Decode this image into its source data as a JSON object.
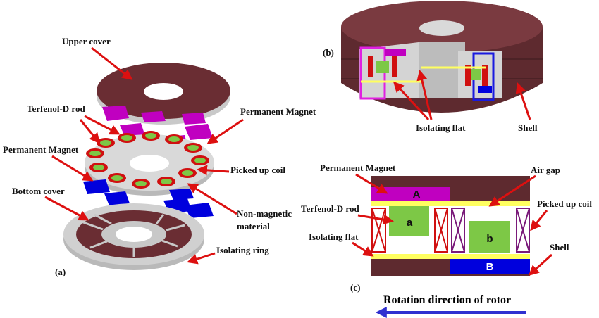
{
  "labels": {
    "upper_cover": "Upper cover",
    "terfenol_a": "Terfenol-D rod",
    "permanent_magnet_a_right": "Permanent Magnet",
    "permanent_magnet_a_left": "Permanent Magnet",
    "picked_up_coil_a": "Picked up coil",
    "bottom_cover": "Bottom cover",
    "non_magnetic_1": "Non-magnetic",
    "non_magnetic_2": "material",
    "isolating_ring": "Isolating ring",
    "panel_a": "(a)",
    "panel_b": "(b)",
    "isolating_flat_b": "Isolating flat",
    "shell_b": "Shell",
    "permanent_magnet_c": "Permanent Magnet",
    "air_gap": "Air gap",
    "terfenol_c": "Terfenol-D rod",
    "picked_up_coil_c": "Picked up coil",
    "isolating_flat_c": "Isolating flat",
    "shell_c": "Shell",
    "panel_c": "(c)",
    "rotation": "Rotation direction of rotor"
  },
  "blocks": {
    "A": "A",
    "B": "B",
    "a": "a",
    "b": "b"
  },
  "colors": {
    "shell": "#5e2a2f",
    "cover_edge": "#c8c8c8",
    "magnet_purple": "#c000c0",
    "magnet_blue": "#0000dd",
    "coil_red": "#d01010",
    "rod_green": "#7dc846",
    "flat_yellow": "#ffff60",
    "arrow_red": "#dd1010",
    "arrow_blue": "#3030d0"
  },
  "icons": [
    "coil-cross-icon",
    "rotation-arrow-icon"
  ]
}
